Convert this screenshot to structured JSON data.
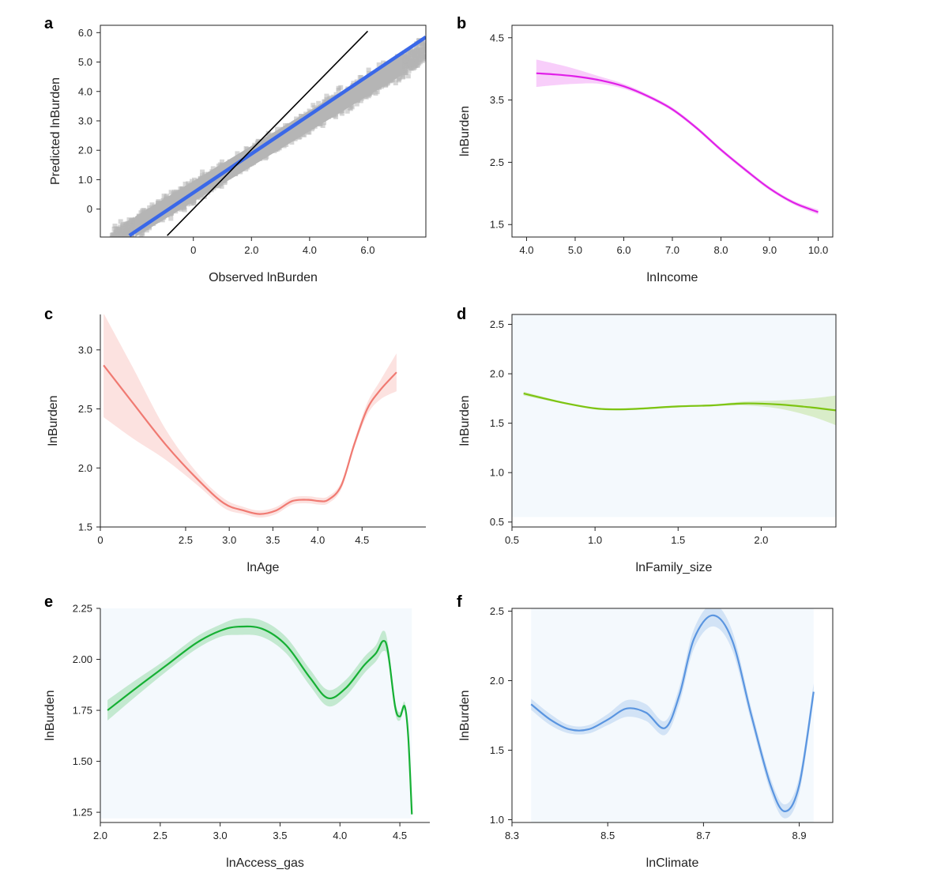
{
  "chart_data": [
    {
      "panel": "a",
      "type": "scatter",
      "xlabel": "Observed lnBurden",
      "ylabel": "Predicted lnBurden",
      "xlim": [
        -3.2,
        8.0
      ],
      "ylim": [
        -0.95,
        6.25
      ],
      "xticks": [
        0,
        2.0,
        4.0,
        6.0
      ],
      "xtick_labels": [
        "0",
        "2.0",
        "4.0",
        "6.0"
      ],
      "yticks": [
        0,
        1.0,
        2.0,
        3.0,
        4.0,
        5.0,
        6.0
      ],
      "ytick_labels": [
        "0",
        "1.0",
        "2.0",
        "3.0",
        "4.0",
        "5.0",
        "6.0"
      ],
      "scatter_color": "#b5b5b5",
      "scatter_note_band": {
        "slope": 0.6,
        "intercept": 0.6,
        "x_range": [
          -3.2,
          8.0
        ]
      },
      "lines": [
        {
          "role": "fit",
          "color": "#3a68e8",
          "x": [
            -2.2,
            8.0
          ],
          "y": [
            -0.9,
            5.85
          ]
        },
        {
          "role": "identity",
          "color": "#000000",
          "x": [
            -0.9,
            6.0
          ],
          "y": [
            -0.9,
            6.05
          ]
        }
      ]
    },
    {
      "panel": "b",
      "type": "line",
      "xlabel": "lnIncome",
      "ylabel": "lnBurden",
      "xlim": [
        3.7,
        10.3
      ],
      "ylim": [
        1.3,
        4.7
      ],
      "xticks": [
        4.0,
        5.0,
        6.0,
        7.0,
        8.0,
        9.0,
        10.0
      ],
      "xtick_labels": [
        "4.0",
        "5.0",
        "6.0",
        "7.0",
        "8.0",
        "9.0",
        "10.0"
      ],
      "yticks": [
        1.5,
        2.5,
        3.5,
        4.5
      ],
      "ytick_labels": [
        "1.5",
        "2.5",
        "3.5",
        "4.5"
      ],
      "color": "#e020e8",
      "x": [
        4.2,
        4.6,
        5.0,
        5.5,
        6.0,
        6.5,
        7.0,
        7.5,
        8.0,
        8.5,
        9.0,
        9.5,
        10.0
      ],
      "y": [
        3.93,
        3.91,
        3.88,
        3.82,
        3.72,
        3.56,
        3.35,
        3.05,
        2.7,
        2.38,
        2.08,
        1.85,
        1.7
      ],
      "band": [
        0.22,
        0.17,
        0.12,
        0.06,
        0.04,
        0.03,
        0.03,
        0.03,
        0.03,
        0.03,
        0.03,
        0.03,
        0.04
      ]
    },
    {
      "panel": "c",
      "type": "line",
      "xlabel": "lnAge",
      "ylabel": "lnBurden",
      "xlim": [
        0,
        5.0
      ],
      "ylim": [
        1.5,
        3.3
      ],
      "xticks": [
        0,
        2.5,
        3.0,
        3.5,
        4.0,
        4.5
      ],
      "xtick_labels": [
        "0",
        "2.5",
        "3.0",
        "3.5",
        "4.0",
        "4.5"
      ],
      "xtick_pos": [
        0,
        1.31,
        1.98,
        2.65,
        3.34,
        4.02
      ],
      "yticks": [
        1.5,
        2.0,
        2.5,
        3.0
      ],
      "ytick_labels": [
        "1.5",
        "2.0",
        "2.5",
        "3.0"
      ],
      "color": "#f07a72",
      "x": [
        0.05,
        0.5,
        1.0,
        1.5,
        1.9,
        2.2,
        2.45,
        2.7,
        2.95,
        3.2,
        3.35,
        3.5,
        3.7,
        3.9,
        4.1,
        4.3,
        4.55
      ],
      "y": [
        2.87,
        2.55,
        2.2,
        1.9,
        1.7,
        1.64,
        1.61,
        1.64,
        1.72,
        1.73,
        1.72,
        1.73,
        1.85,
        2.2,
        2.5,
        2.66,
        2.81
      ],
      "band": [
        0.44,
        0.3,
        0.13,
        0.05,
        0.04,
        0.03,
        0.03,
        0.03,
        0.03,
        0.03,
        0.03,
        0.03,
        0.03,
        0.03,
        0.05,
        0.08,
        0.16
      ]
    },
    {
      "panel": "d",
      "type": "line",
      "xlabel": "lnFamily_size",
      "ylabel": "lnBurden",
      "xlim": [
        0.5,
        2.45
      ],
      "ylim": [
        0.45,
        2.6
      ],
      "xticks": [
        0.5,
        1.0,
        1.5,
        2.0
      ],
      "xtick_labels": [
        "0.5",
        "1.0",
        "1.5",
        "2.0"
      ],
      "yticks": [
        0.5,
        1.0,
        1.5,
        2.0,
        2.5
      ],
      "ytick_labels": [
        "0.5",
        "1.0",
        "1.5",
        "2.0",
        "2.5"
      ],
      "color": "#7dc412",
      "x": [
        0.57,
        0.8,
        1.0,
        1.15,
        1.3,
        1.5,
        1.7,
        1.9,
        2.1,
        2.3,
        2.45
      ],
      "y": [
        1.8,
        1.71,
        1.65,
        1.64,
        1.65,
        1.67,
        1.68,
        1.7,
        1.69,
        1.66,
        1.63
      ],
      "band": [
        0.02,
        0.01,
        0.01,
        0.01,
        0.01,
        0.01,
        0.01,
        0.02,
        0.04,
        0.09,
        0.15
      ]
    },
    {
      "panel": "e",
      "type": "line",
      "xlabel": "lnAccess_gas",
      "ylabel": "lnBurden",
      "xlim": [
        2.0,
        4.75
      ],
      "ylim": [
        1.2,
        2.25
      ],
      "xticks": [
        2.0,
        2.5,
        3.0,
        3.5,
        4.0,
        4.5
      ],
      "xtick_labels": [
        "2.0",
        "2.5",
        "3.0",
        "3.5",
        "4.0",
        "4.5"
      ],
      "yticks": [
        1.25,
        1.5,
        1.75,
        2.0,
        2.25
      ],
      "ytick_labels": [
        "1.25",
        "1.50",
        "1.75",
        "2.00",
        "2.25"
      ],
      "color": "#16b034",
      "x": [
        2.06,
        2.3,
        2.55,
        2.8,
        3.0,
        3.15,
        3.35,
        3.55,
        3.75,
        3.9,
        4.05,
        4.2,
        4.3,
        4.36,
        4.4,
        4.46,
        4.5,
        4.54,
        4.57,
        4.6
      ],
      "y": [
        1.75,
        1.86,
        1.97,
        2.08,
        2.14,
        2.16,
        2.15,
        2.07,
        1.91,
        1.81,
        1.86,
        1.97,
        2.03,
        2.09,
        2.04,
        1.77,
        1.72,
        1.77,
        1.62,
        1.24
      ],
      "band": [
        0.05,
        0.04,
        0.03,
        0.03,
        0.03,
        0.04,
        0.04,
        0.04,
        0.04,
        0.04,
        0.04,
        0.04,
        0.04,
        0.05,
        0.04,
        0.03,
        0.02,
        0.02,
        0.01,
        0.01
      ]
    },
    {
      "panel": "f",
      "type": "line",
      "xlabel": "lnClimate",
      "ylabel": "lnBurden",
      "xlim": [
        8.3,
        8.97
      ],
      "ylim": [
        0.98,
        2.52
      ],
      "xticks": [
        8.3,
        8.5,
        8.7,
        8.9
      ],
      "xtick_labels": [
        "8.3",
        "8.5",
        "8.7",
        "8.9"
      ],
      "yticks": [
        1.0,
        1.5,
        2.0,
        2.5
      ],
      "ytick_labels": [
        "1.0",
        "1.5",
        "2.0",
        "2.5"
      ],
      "color": "#5a95e0",
      "x": [
        8.34,
        8.38,
        8.42,
        8.46,
        8.5,
        8.54,
        8.58,
        8.62,
        8.65,
        8.68,
        8.72,
        8.76,
        8.8,
        8.84,
        8.87,
        8.9,
        8.93
      ],
      "y": [
        1.83,
        1.72,
        1.65,
        1.65,
        1.72,
        1.8,
        1.77,
        1.66,
        1.9,
        2.3,
        2.47,
        2.29,
        1.75,
        1.25,
        1.06,
        1.25,
        1.92
      ],
      "band": [
        0.04,
        0.04,
        0.03,
        0.03,
        0.04,
        0.06,
        0.06,
        0.05,
        0.06,
        0.07,
        0.08,
        0.07,
        0.05,
        0.05,
        0.05,
        0.06,
        0.06
      ]
    }
  ]
}
